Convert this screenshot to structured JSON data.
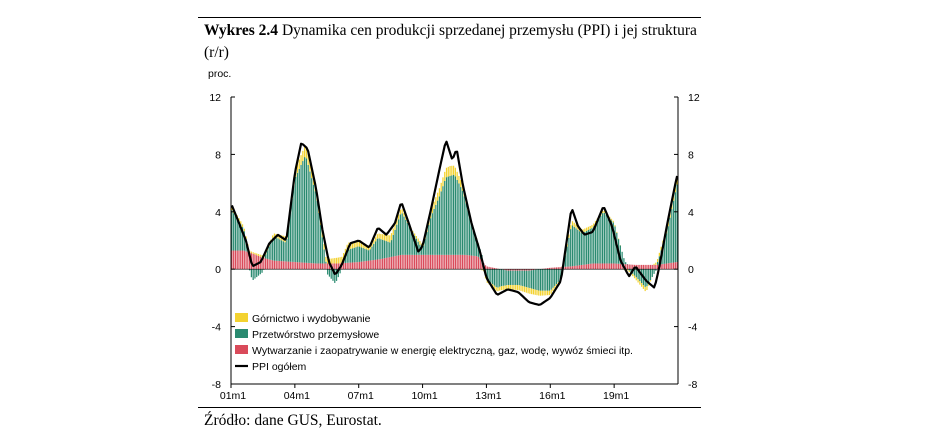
{
  "figure": {
    "title_label": "Wykres 2.4",
    "title_text": "Dynamika cen produkcji sprzedanej przemysłu (PPI) i jej struktura (r/r)",
    "source": "Źródło: dane GUS, Eurostat."
  },
  "chart_data": {
    "type": "bar",
    "unit_label": "proc.",
    "ylim": [
      -8,
      12
    ],
    "yticks": [
      "12",
      "8",
      "4",
      "0",
      "-4",
      "-8"
    ],
    "xtick_labels": [
      "01m1",
      "04m1",
      "07m1",
      "10m1",
      "13m1",
      "16m1",
      "19m1"
    ],
    "x_start": "2001-01",
    "x_end": "2021-12",
    "grid": false,
    "legend_placement": "bottom-left",
    "series": [
      {
        "name": "Górnictwo i wydobywanie",
        "kind": "stacked-bar",
        "color": "#f3d230",
        "knots": [
          [
            2001.0,
            0.3
          ],
          [
            2002.0,
            0.1
          ],
          [
            2003.0,
            0.2
          ],
          [
            2004.0,
            0.6
          ],
          [
            2004.7,
            0.8
          ],
          [
            2005.5,
            0.3
          ],
          [
            2006.5,
            0.5
          ],
          [
            2007.5,
            0.2
          ],
          [
            2008.5,
            0.5
          ],
          [
            2009.5,
            0.1
          ],
          [
            2010.5,
            0.5
          ],
          [
            2011.3,
            0.7
          ],
          [
            2012.0,
            0.4
          ],
          [
            2013.0,
            -0.2
          ],
          [
            2014.0,
            -0.3
          ],
          [
            2015.0,
            -0.4
          ],
          [
            2016.0,
            -0.3
          ],
          [
            2017.0,
            0.3
          ],
          [
            2018.0,
            0.2
          ],
          [
            2019.0,
            0.1
          ],
          [
            2020.0,
            -0.2
          ],
          [
            2020.5,
            -0.3
          ],
          [
            2021.0,
            0.2
          ],
          [
            2021.95,
            0.5
          ]
        ]
      },
      {
        "name": "Przetwórstwo przemysłowe",
        "kind": "stacked-bar",
        "color": "#2a8a70",
        "knots": [
          [
            2001.0,
            2.9
          ],
          [
            2001.6,
            1.5
          ],
          [
            2002.0,
            -0.8
          ],
          [
            2002.5,
            -0.2
          ],
          [
            2003.0,
            1.7
          ],
          [
            2003.6,
            1.3
          ],
          [
            2004.0,
            5.8
          ],
          [
            2004.5,
            7.5
          ],
          [
            2005.0,
            4.8
          ],
          [
            2005.5,
            -0.3
          ],
          [
            2005.9,
            -1.0
          ],
          [
            2006.5,
            0.9
          ],
          [
            2007.0,
            1.1
          ],
          [
            2007.5,
            0.7
          ],
          [
            2007.9,
            1.5
          ],
          [
            2008.5,
            1.0
          ],
          [
            2009.0,
            3.0
          ],
          [
            2009.6,
            1.4
          ],
          [
            2010.0,
            0.4
          ],
          [
            2010.4,
            2.7
          ],
          [
            2010.8,
            4.1
          ],
          [
            2011.1,
            5.4
          ],
          [
            2011.5,
            5.6
          ],
          [
            2011.9,
            4.4
          ],
          [
            2012.4,
            1.6
          ],
          [
            2012.8,
            0.4
          ],
          [
            2013.0,
            -0.7
          ],
          [
            2013.5,
            -1.3
          ],
          [
            2014.0,
            -1.0
          ],
          [
            2014.5,
            -1.0
          ],
          [
            2015.0,
            -1.2
          ],
          [
            2015.5,
            -1.5
          ],
          [
            2016.0,
            -1.5
          ],
          [
            2016.5,
            -0.7
          ],
          [
            2017.0,
            2.9
          ],
          [
            2017.5,
            2.2
          ],
          [
            2018.0,
            2.5
          ],
          [
            2018.5,
            3.6
          ],
          [
            2019.0,
            2.8
          ],
          [
            2019.5,
            0.2
          ],
          [
            2020.0,
            -0.5
          ],
          [
            2020.5,
            -1.3
          ],
          [
            2021.0,
            0.0
          ],
          [
            2021.5,
            2.3
          ],
          [
            2021.95,
            5.4
          ]
        ]
      },
      {
        "name": "Wytwarzanie i zaopatrywanie w energię elektryczną, gaz, wodę, wywóz śmieci itp.",
        "kind": "stacked-bar",
        "color": "#d94a5a",
        "knots": [
          [
            2001.0,
            1.3
          ],
          [
            2001.6,
            1.3
          ],
          [
            2002.0,
            1.1
          ],
          [
            2002.5,
            0.8
          ],
          [
            2003.0,
            0.6
          ],
          [
            2004.0,
            0.5
          ],
          [
            2005.0,
            0.4
          ],
          [
            2006.0,
            0.4
          ],
          [
            2007.0,
            0.5
          ],
          [
            2008.0,
            0.7
          ],
          [
            2009.0,
            1.0
          ],
          [
            2010.0,
            1.0
          ],
          [
            2011.0,
            1.0
          ],
          [
            2012.0,
            1.0
          ],
          [
            2012.6,
            0.9
          ],
          [
            2013.0,
            0.2
          ],
          [
            2014.0,
            -0.1
          ],
          [
            2015.0,
            -0.1
          ],
          [
            2016.0,
            0.1
          ],
          [
            2017.0,
            0.2
          ],
          [
            2018.0,
            0.4
          ],
          [
            2019.0,
            0.4
          ],
          [
            2020.0,
            0.3
          ],
          [
            2021.0,
            0.3
          ],
          [
            2021.95,
            0.5
          ]
        ]
      },
      {
        "name": "PPI ogółem",
        "kind": "line",
        "color": "#000000",
        "knots": [
          [
            2001.0,
            4.6
          ],
          [
            2001.3,
            3.5
          ],
          [
            2001.7,
            2.0
          ],
          [
            2002.0,
            0.2
          ],
          [
            2002.4,
            0.5
          ],
          [
            2002.8,
            1.8
          ],
          [
            2003.2,
            2.4
          ],
          [
            2003.6,
            2.0
          ],
          [
            2004.0,
            6.7
          ],
          [
            2004.3,
            8.8
          ],
          [
            2004.6,
            8.4
          ],
          [
            2005.0,
            5.6
          ],
          [
            2005.3,
            2.7
          ],
          [
            2005.6,
            0.5
          ],
          [
            2005.9,
            -0.4
          ],
          [
            2006.2,
            0.3
          ],
          [
            2006.6,
            1.8
          ],
          [
            2007.0,
            2.0
          ],
          [
            2007.5,
            1.5
          ],
          [
            2007.9,
            2.9
          ],
          [
            2008.3,
            2.4
          ],
          [
            2008.7,
            3.2
          ],
          [
            2009.0,
            4.7
          ],
          [
            2009.4,
            3.0
          ],
          [
            2009.8,
            1.2
          ],
          [
            2010.0,
            1.6
          ],
          [
            2010.4,
            4.2
          ],
          [
            2010.8,
            7.0
          ],
          [
            2011.1,
            9.0
          ],
          [
            2011.4,
            7.6
          ],
          [
            2011.6,
            8.4
          ],
          [
            2011.9,
            5.8
          ],
          [
            2012.3,
            3.2
          ],
          [
            2012.7,
            1.2
          ],
          [
            2013.0,
            -0.6
          ],
          [
            2013.5,
            -1.8
          ],
          [
            2014.0,
            -1.4
          ],
          [
            2014.5,
            -1.6
          ],
          [
            2015.0,
            -2.3
          ],
          [
            2015.5,
            -2.5
          ],
          [
            2016.0,
            -2.0
          ],
          [
            2016.5,
            -0.8
          ],
          [
            2017.0,
            4.3
          ],
          [
            2017.3,
            3.0
          ],
          [
            2017.6,
            2.4
          ],
          [
            2018.0,
            2.6
          ],
          [
            2018.5,
            4.4
          ],
          [
            2018.9,
            3.0
          ],
          [
            2019.3,
            0.6
          ],
          [
            2019.7,
            -0.5
          ],
          [
            2020.0,
            0.2
          ],
          [
            2020.5,
            -0.8
          ],
          [
            2020.9,
            -1.3
          ],
          [
            2021.1,
            0.0
          ],
          [
            2021.5,
            3.2
          ],
          [
            2021.95,
            6.5
          ]
        ]
      }
    ]
  }
}
